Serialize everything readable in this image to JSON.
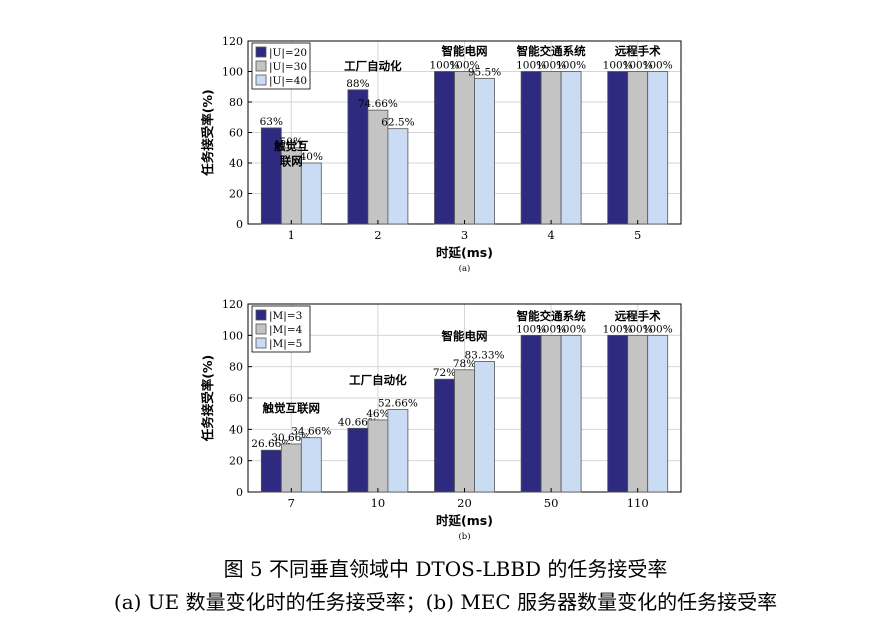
{
  "caption": {
    "title": "图 5  不同垂直领域中 DTOS-LBBD 的任务接受率",
    "subtitle": "(a) UE 数量变化时的任务接受率；(b) MEC 服务器数量变化的任务接受率"
  },
  "colors": {
    "series1": "#2e2a80",
    "series2": "#c4c4c4",
    "series3": "#c9dcf4",
    "axis": "#000000",
    "grid": "#d6d6d6"
  },
  "chart_data": [
    {
      "type": "bar",
      "panel_label": "(a)",
      "xlabel": "时延(ms)",
      "ylabel": "任务接受率(%)",
      "ylim": [
        0,
        120
      ],
      "yticks": [
        0,
        20,
        40,
        60,
        80,
        100,
        120
      ],
      "grid": true,
      "legend_position": "top-left",
      "categories": [
        "1",
        "2",
        "3",
        "4",
        "5"
      ],
      "group_labels": [
        "触觉互\n联网",
        "工厂自动化",
        "智能电网",
        "智能交通系统",
        "远程手术"
      ],
      "series": [
        {
          "name": "|U|=20",
          "values": [
            63,
            88,
            100,
            100,
            100
          ],
          "labels": [
            "63%",
            "88%",
            "100%",
            "100%",
            "100%"
          ]
        },
        {
          "name": "|U|=30",
          "values": [
            50,
            74.66,
            100,
            100,
            100
          ],
          "labels": [
            "50%",
            "74.66%",
            "100%",
            "100%",
            "100%"
          ]
        },
        {
          "name": "|U|=40",
          "values": [
            40,
            62.5,
            95.5,
            100,
            100
          ],
          "labels": [
            "40%",
            "62.5%",
            "95.5%",
            "100%",
            "100%"
          ]
        }
      ]
    },
    {
      "type": "bar",
      "panel_label": "(b)",
      "xlabel": "时延(ms)",
      "ylabel": "任务接受率(%)",
      "ylim": [
        0,
        120
      ],
      "yticks": [
        0,
        20,
        40,
        60,
        80,
        100,
        120
      ],
      "grid": true,
      "legend_position": "top-left",
      "categories": [
        "7",
        "10",
        "20",
        "50",
        "110"
      ],
      "group_labels": [
        "触觉互联网",
        "工厂自动化",
        "智能电网",
        "智能交通系统",
        "远程手术"
      ],
      "series": [
        {
          "name": "|M|=3",
          "values": [
            26.66,
            40.66,
            72,
            100,
            100
          ],
          "labels": [
            "26.66%",
            "40.66%",
            "72%",
            "100%",
            "100%"
          ]
        },
        {
          "name": "|M|=4",
          "values": [
            30.66,
            46,
            78,
            100,
            100
          ],
          "labels": [
            "30.66%",
            "46%",
            "78%",
            "100%",
            "100%"
          ]
        },
        {
          "name": "|M|=5",
          "values": [
            34.66,
            52.66,
            83.33,
            100,
            100
          ],
          "labels": [
            "34.66%",
            "52.66%",
            "83.33%",
            "100%",
            "100%"
          ]
        }
      ]
    }
  ]
}
